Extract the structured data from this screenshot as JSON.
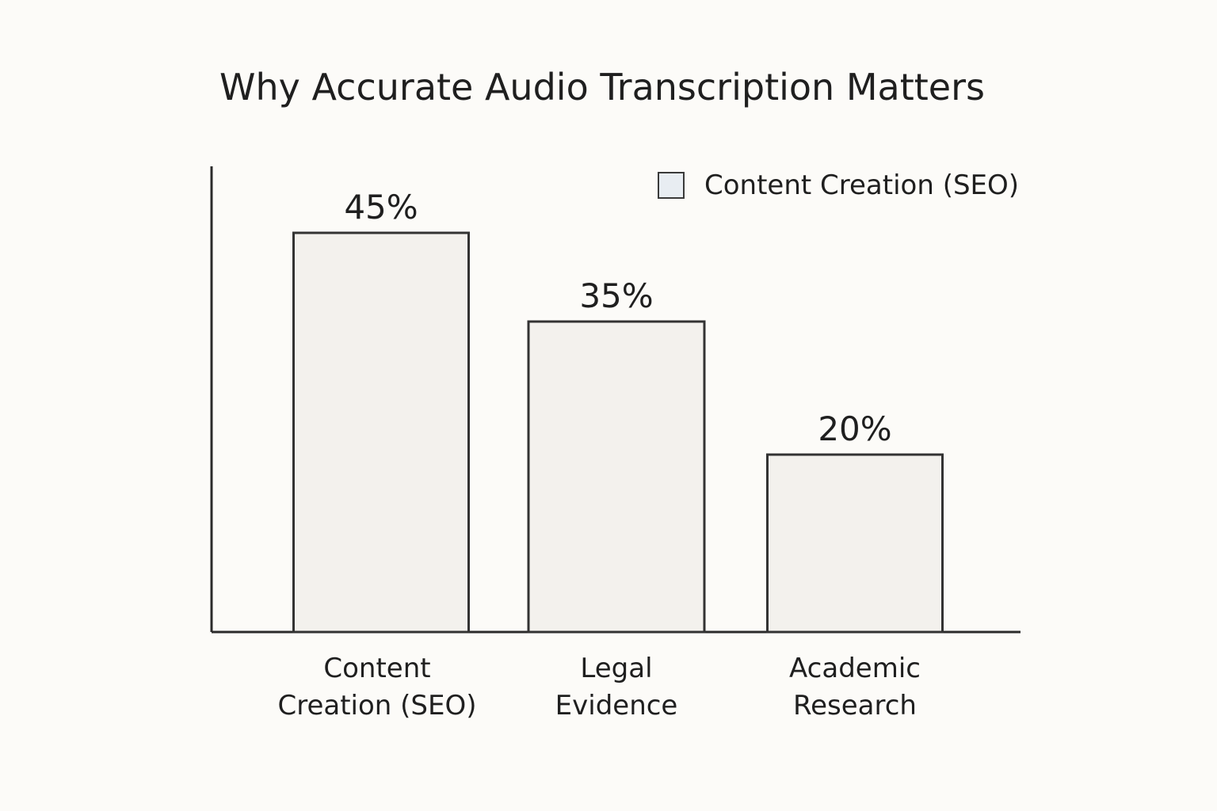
{
  "chart_data": {
    "type": "bar",
    "title": "Why Accurate Audio Transcription Matters",
    "xlabel": "",
    "ylabel": "",
    "categories": [
      [
        "Content",
        "Creation (SEO)"
      ],
      [
        "Legal",
        "Evidence"
      ],
      [
        "Academic",
        "Research"
      ]
    ],
    "series": [
      {
        "name": "Content Creation (SEO)",
        "values": [
          45,
          35,
          20
        ]
      }
    ],
    "data_labels": [
      "45%",
      "35%",
      "20%"
    ],
    "ylim": [
      0,
      50
    ],
    "grid": false,
    "legend": {
      "position": "top-right",
      "label": "Content Creation (SEO)"
    },
    "colors": {
      "bar_fill": "#f3f1ed",
      "bar_stroke": "#333333",
      "axis": "#2b2b2b",
      "legend_swatch": "#e8edf2",
      "text": "#1f1f1f",
      "background": "#fcfbf8"
    }
  }
}
